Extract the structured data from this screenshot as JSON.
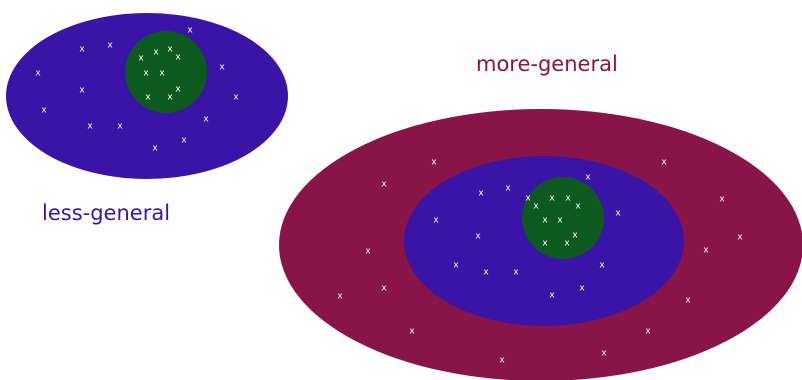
{
  "labels": {
    "less_general": "less-general",
    "more_general": "more-general"
  },
  "marker": "x",
  "colors": {
    "outer_ellipse": "#891548",
    "middle_ellipse": "#3a14a6",
    "inner_circle": "#0d5a1f",
    "marker": "#ffffff",
    "less_general_label": "#3a14a6",
    "more_general_label": "#891548"
  }
}
